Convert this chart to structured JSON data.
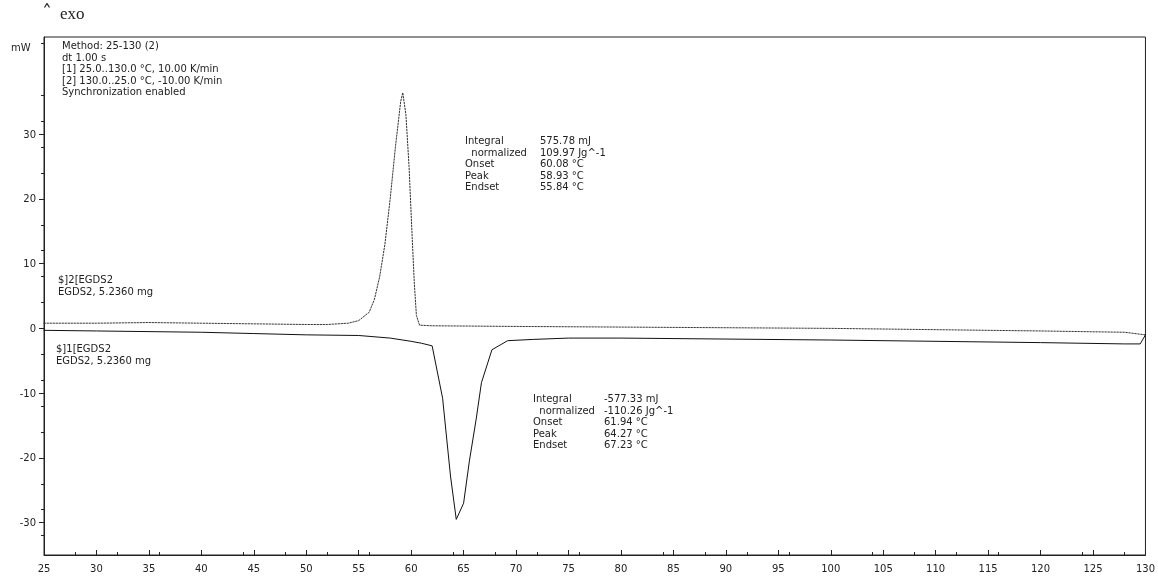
{
  "chart_data": {
    "type": "line",
    "ylabel": "mW",
    "x": [
      25,
      30,
      35,
      40,
      45,
      50,
      52,
      54,
      55,
      56,
      56.5,
      57,
      57.5,
      58,
      58.5,
      59,
      59.2,
      59.5,
      59.8,
      60.1,
      60.3,
      60.5,
      60.8,
      62,
      70,
      80,
      90,
      100,
      110,
      120,
      128,
      130
    ],
    "series": [
      {
        "name": "$]2[EGDS2\nEGDS2, 5.2360 mg",
        "color": "#333333",
        "line_style": "dotted",
        "values": [
          0.8,
          0.8,
          0.9,
          0.8,
          0.7,
          0.6,
          0.6,
          0.8,
          1.2,
          2.5,
          4.5,
          8,
          13,
          20,
          28,
          35,
          36.4,
          33,
          25,
          14,
          7,
          2,
          0.5,
          0.4,
          0.3,
          0.2,
          0.1,
          0,
          -0.2,
          -0.4,
          -0.6,
          -1
        ]
      },
      {
        "name": "$]1[EGDS2\nEGDS2, 5.2360 mg",
        "color": "#111111",
        "line_style": "solid",
        "x": [
          25,
          30,
          40,
          45,
          50,
          55,
          58,
          60,
          61,
          62,
          63,
          63.75,
          64.3,
          65,
          65.55,
          66.2,
          66.7,
          67.7,
          69.2,
          71.7,
          75,
          80,
          100,
          120,
          128,
          129.5,
          130
        ],
        "values": [
          -0.3,
          -0.4,
          -0.6,
          -0.8,
          -1,
          -1.1,
          -1.5,
          -2,
          -2.3,
          -2.7,
          -10.8,
          -22.8,
          -29.5,
          -27,
          -20.5,
          -14,
          -8.4,
          -3.3,
          -1.9,
          -1.7,
          -1.5,
          -1.5,
          -1.8,
          -2.2,
          -2.4,
          -2.4,
          -1
        ]
      }
    ],
    "xlim": [
      25,
      130
    ],
    "xticks": [
      25,
      30,
      35,
      40,
      45,
      50,
      55,
      60,
      65,
      70,
      75,
      80,
      85,
      90,
      95,
      100,
      105,
      110,
      115,
      120,
      125,
      130
    ],
    "ylim": [
      -35,
      45
    ],
    "yticks": [
      -30,
      -20,
      -10,
      0,
      10,
      20,
      30
    ],
    "grid": false,
    "legend": false,
    "marker": "none",
    "annotations": [
      "exo",
      "Method: 25-130 (2)\ndt 1.00 s\n[1] 25.0..130.0 °C, 10.00 K/min\n[2] 130.0..25.0 °C, -10.00 K/min\nSynchronization enabled",
      "Integral\n  normalized\nOnset\nPeak\nEndset",
      "575.78 mJ\n109.97 Jg^-1\n60.08 °C\n58.93 °C\n55.84 °C",
      "Integral\n  normalized\nOnset\nPeak\nEndset",
      "-577.33 mJ\n-110.26 Jg^-1\n61.94 °C\n64.27 °C\n67.23 °C"
    ]
  }
}
